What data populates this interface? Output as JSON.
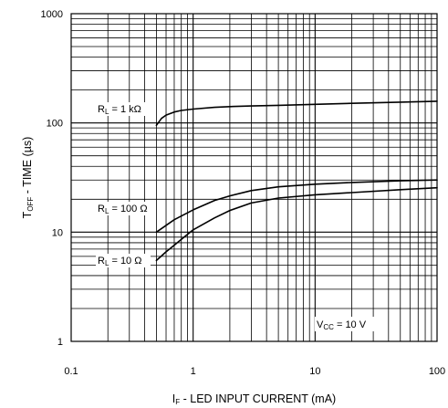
{
  "chart_data": {
    "type": "line",
    "title": "",
    "xlabel": {
      "main": "I",
      "sub": "F",
      "rest": " - LED INPUT CURRENT (mA)"
    },
    "ylabel": {
      "main": "T",
      "sub": "OFF",
      "rest": " - TIME (µs)"
    },
    "x_scale": "log",
    "y_scale": "log",
    "xlim": [
      0.1,
      100
    ],
    "ylim": [
      1,
      1000
    ],
    "grid": true,
    "x_ticks": [
      {
        "v": 0.1,
        "label": "0.1"
      },
      {
        "v": 1,
        "label": "1"
      },
      {
        "v": 10,
        "label": "10"
      },
      {
        "v": 100,
        "label": "100"
      }
    ],
    "y_ticks": [
      {
        "v": 1,
        "label": "1"
      },
      {
        "v": 10,
        "label": "10"
      },
      {
        "v": 100,
        "label": "100"
      },
      {
        "v": 1000,
        "label": "1000"
      }
    ],
    "series": [
      {
        "name": "R_L = 1 kΩ",
        "label": {
          "main": "R",
          "sub": "L",
          "rest": " = 1 kΩ"
        },
        "x": [
          0.5,
          0.55,
          0.6,
          0.7,
          0.8,
          1,
          1.5,
          2,
          3,
          5,
          10,
          20,
          50,
          100
        ],
        "y": [
          95,
          110,
          118,
          126,
          130,
          134,
          139,
          141,
          143,
          145,
          148,
          151,
          155,
          158
        ]
      },
      {
        "name": "R_L = 100 Ω",
        "label": {
          "main": "R",
          "sub": "L",
          "rest": " = 100 Ω"
        },
        "x": [
          0.5,
          0.7,
          1,
          1.5,
          2,
          3,
          5,
          10,
          20,
          50,
          100
        ],
        "y": [
          10,
          13,
          16,
          19.5,
          21.5,
          24,
          26,
          27.5,
          28.5,
          29.5,
          30
        ]
      },
      {
        "name": "R_L = 10 Ω",
        "label": {
          "main": "R",
          "sub": "L",
          "rest": " = 10 Ω"
        },
        "x": [
          0.5,
          0.6,
          0.7,
          0.8,
          1,
          1.5,
          2,
          3,
          5,
          10,
          20,
          50,
          100
        ],
        "y": [
          5.5,
          6.6,
          7.6,
          8.6,
          10.5,
          13.5,
          15.8,
          18.5,
          20.5,
          22,
          23,
          24.5,
          25.5
        ]
      }
    ],
    "annotations": [
      {
        "main": "V",
        "sub": "CC",
        "rest": " = 10 V"
      }
    ]
  }
}
